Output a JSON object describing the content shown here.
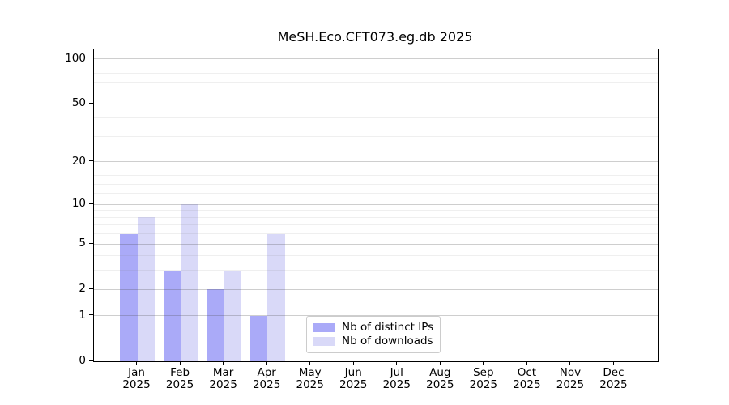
{
  "chart_data": {
    "type": "bar",
    "title": "MeSH.Eco.CFT073.eg.db 2025",
    "categories": [
      {
        "month": "Jan",
        "year": "2025"
      },
      {
        "month": "Feb",
        "year": "2025"
      },
      {
        "month": "Mar",
        "year": "2025"
      },
      {
        "month": "Apr",
        "year": "2025"
      },
      {
        "month": "May",
        "year": "2025"
      },
      {
        "month": "Jun",
        "year": "2025"
      },
      {
        "month": "Jul",
        "year": "2025"
      },
      {
        "month": "Aug",
        "year": "2025"
      },
      {
        "month": "Sep",
        "year": "2025"
      },
      {
        "month": "Oct",
        "year": "2025"
      },
      {
        "month": "Nov",
        "year": "2025"
      },
      {
        "month": "Dec",
        "year": "2025"
      }
    ],
    "series": [
      {
        "name": "Nb of distinct IPs",
        "key": "distinct-ips",
        "color": "#aaaaf8",
        "values": [
          6,
          3,
          2,
          1,
          0,
          0,
          0,
          0,
          0,
          0,
          0,
          0
        ]
      },
      {
        "name": "Nb of downloads",
        "key": "downloads",
        "color": "#d9d9f8",
        "values": [
          8,
          10,
          3,
          6,
          0,
          0,
          0,
          0,
          0,
          0,
          0,
          0
        ]
      }
    ],
    "xlabel": "",
    "ylabel": "",
    "y_scale": "log1p",
    "y_major_ticks": [
      0,
      1,
      2,
      5,
      10,
      20,
      50,
      100
    ],
    "y_minor_ticks": [
      3,
      4,
      6,
      7,
      8,
      9,
      12,
      14,
      16,
      18,
      30,
      40,
      60,
      70,
      80,
      90
    ],
    "ylim": [
      0,
      116
    ],
    "xlim_units": [
      -1,
      12
    ],
    "grid": "major+minor horizontal, drawn above bars",
    "legend_position": "lower center, inside axes"
  },
  "legend": {
    "items": [
      "Nb of distinct IPs",
      "Nb of downloads"
    ]
  },
  "colors": {
    "distinct_ips_bar": "#aaaaf8",
    "downloads_bar": "#d9d9f8",
    "spine": "#000000",
    "legend_border": "#cccccc",
    "background": "#ffffff"
  }
}
